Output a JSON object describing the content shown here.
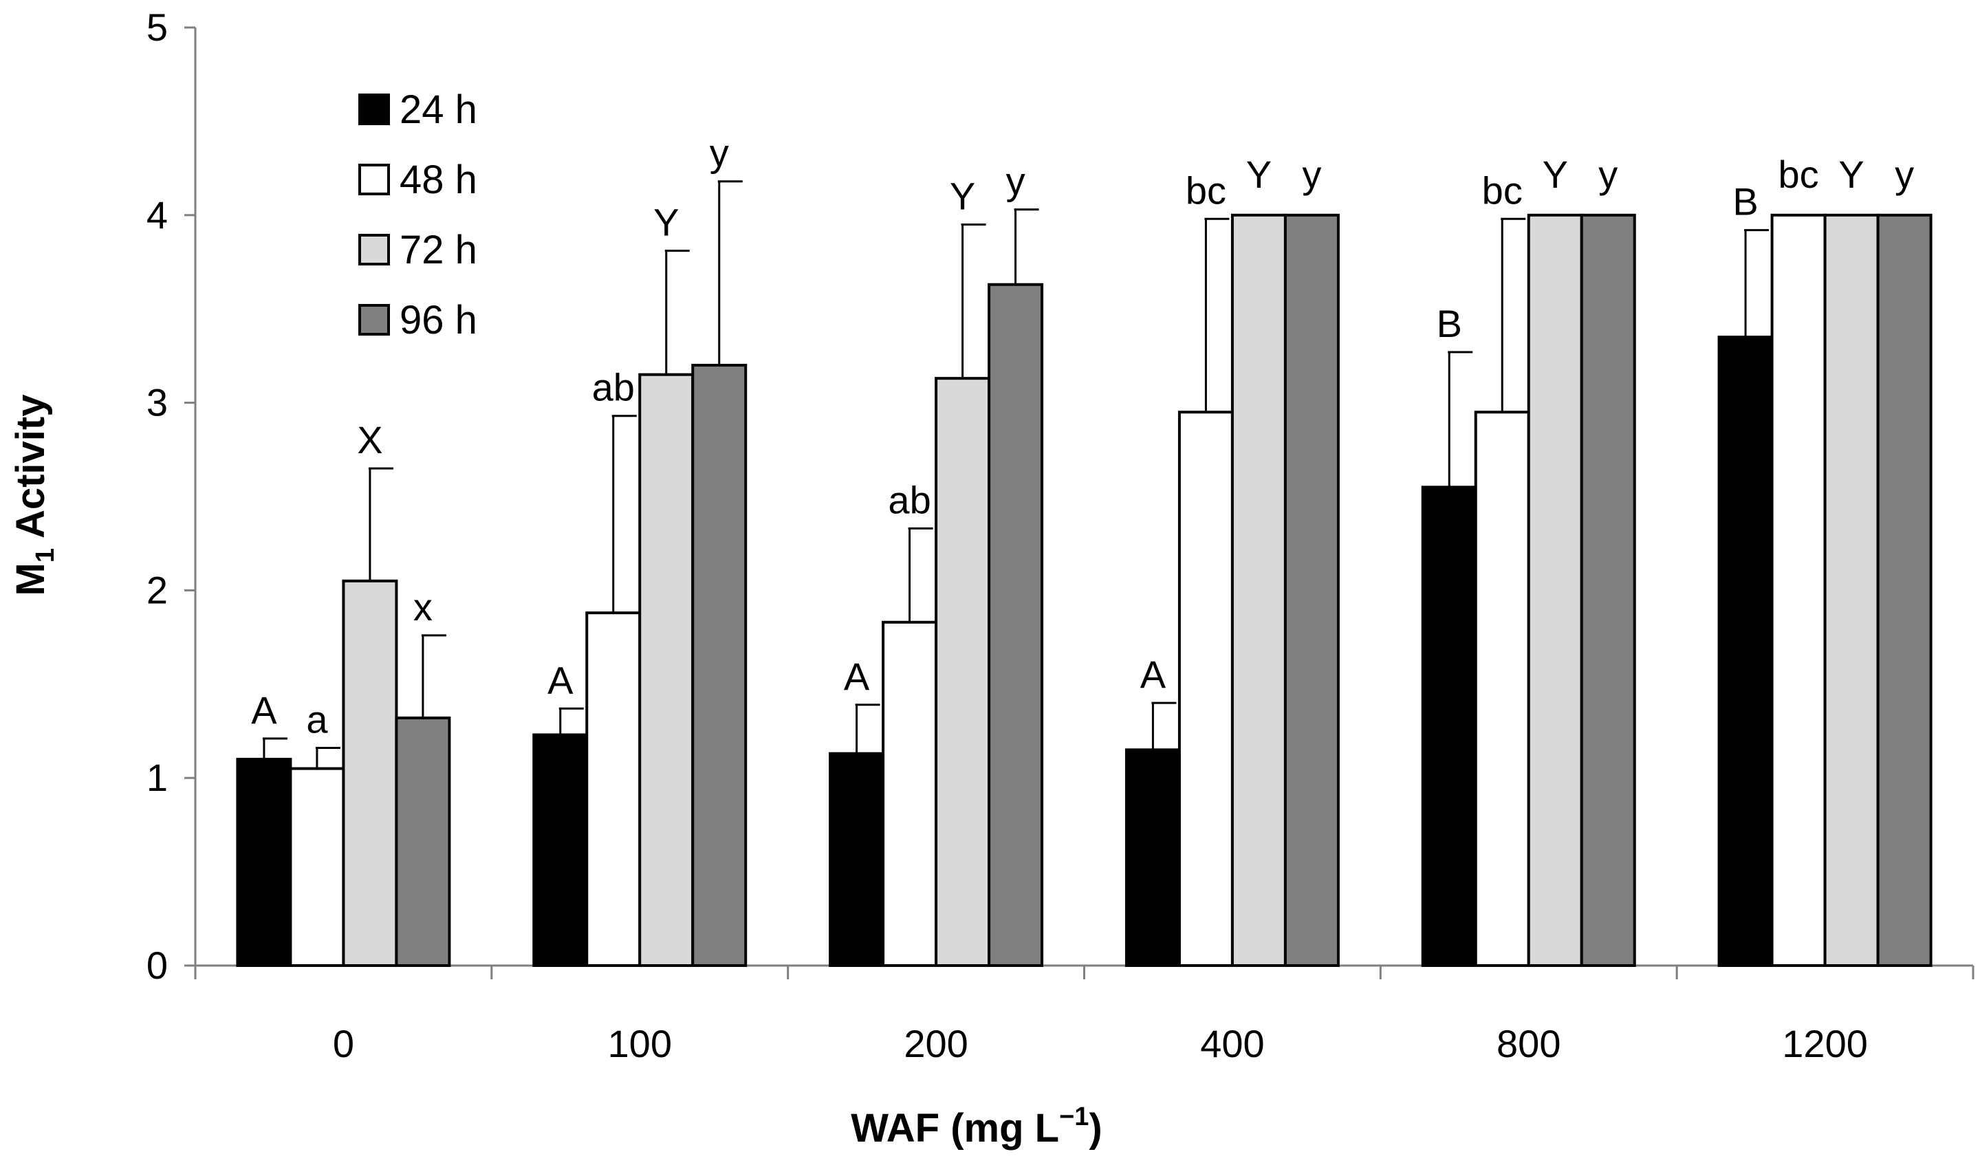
{
  "chart_data": {
    "type": "bar",
    "title": "",
    "xlabel": {
      "main": "WAF (mg L",
      "sup": "−1",
      "close": ")"
    },
    "ylabel": {
      "main": "M",
      "sub": "1",
      "rest": " Activity"
    },
    "ylim": [
      0,
      5
    ],
    "yticks": [
      0,
      1,
      2,
      3,
      4,
      5
    ],
    "categories": [
      "0",
      "100",
      "200",
      "400",
      "800",
      "1200"
    ],
    "legend_position": "top-left",
    "series": [
      {
        "name": "24 h",
        "color": "#000000",
        "values": [
          1.1,
          1.23,
          1.13,
          1.15,
          2.55,
          3.35
        ],
        "error": [
          0.11,
          0.14,
          0.26,
          0.25,
          0.72,
          0.57
        ],
        "labels": [
          "A",
          "A",
          "A",
          "A",
          "B",
          "B"
        ]
      },
      {
        "name": "48 h",
        "color": "#ffffff",
        "values": [
          1.05,
          1.88,
          1.83,
          2.95,
          2.95,
          4.0
        ],
        "error": [
          0.11,
          1.05,
          0.5,
          1.03,
          1.03,
          0
        ],
        "labels": [
          "a",
          "ab",
          "ab",
          "bc",
          "bc",
          "bc"
        ]
      },
      {
        "name": "72 h",
        "color": "#d9d9d9",
        "values": [
          2.05,
          3.15,
          3.13,
          4.0,
          4.0,
          4.0
        ],
        "error": [
          0.6,
          0.66,
          0.82,
          0,
          0,
          0
        ],
        "labels": [
          "X",
          "Y",
          "Y",
          "Y",
          "Y",
          "Y"
        ]
      },
      {
        "name": "96 h",
        "color": "#808080",
        "values": [
          1.32,
          3.2,
          3.63,
          4.0,
          4.0,
          4.0
        ],
        "error": [
          0.44,
          0.98,
          0.4,
          0,
          0,
          0
        ],
        "labels": [
          "x",
          "y",
          "y",
          "y",
          "y",
          "y"
        ]
      }
    ]
  }
}
